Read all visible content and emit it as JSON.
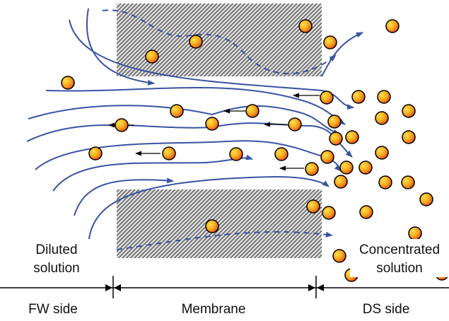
{
  "labels": {
    "fw_solution": [
      "Diluted",
      "solution"
    ],
    "ds_solution": [
      "Concentrated",
      "solution"
    ]
  },
  "regions": [
    "FW side",
    "Membrane",
    "DS side"
  ]
}
